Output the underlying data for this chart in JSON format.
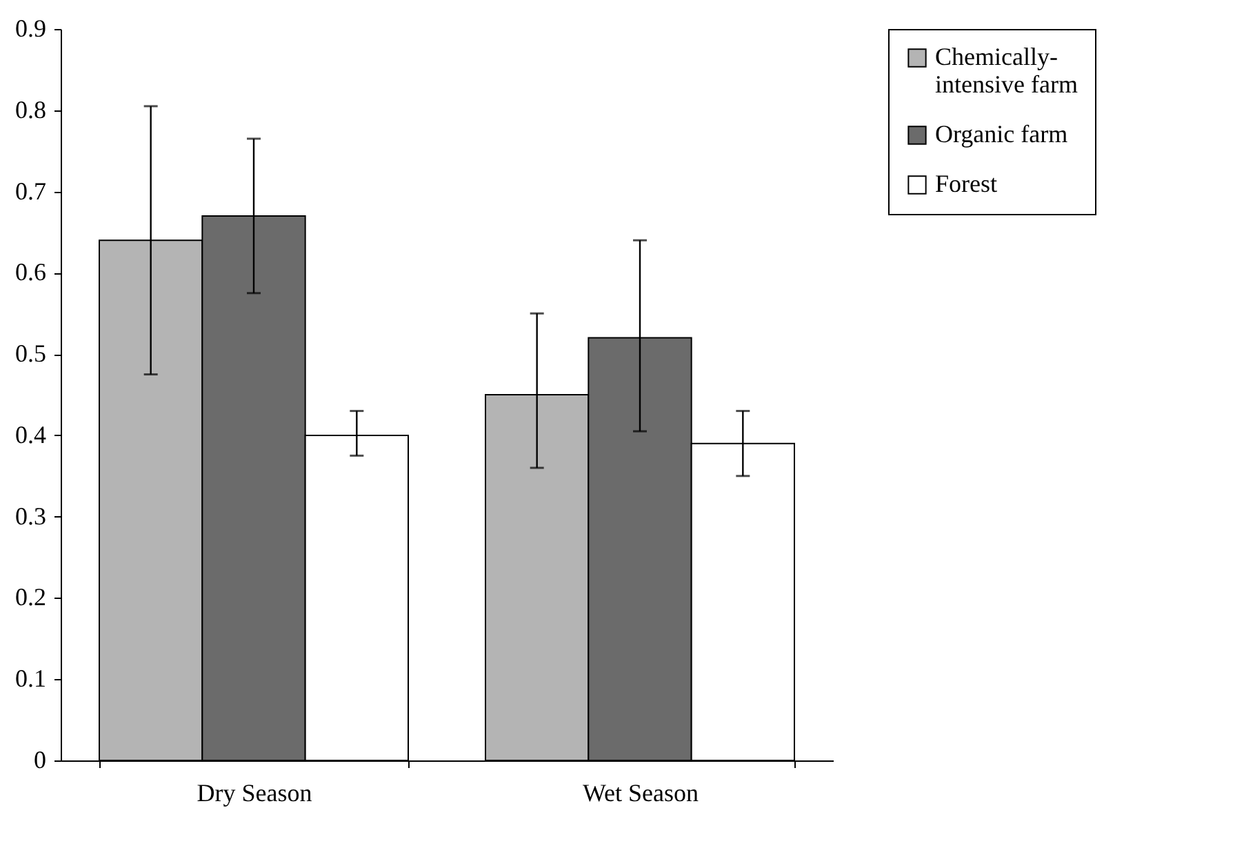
{
  "chart_data": {
    "type": "bar",
    "categories": [
      "Dry Season",
      "Wet Season"
    ],
    "series": [
      {
        "name": "Chemically-intensive farm",
        "color": "#b4b4b4",
        "values": [
          0.64,
          0.45
        ],
        "errors": [
          [
            0.475,
            0.805
          ],
          [
            0.36,
            0.55
          ]
        ]
      },
      {
        "name": "Organic farm",
        "color": "#6b6b6b",
        "values": [
          0.67,
          0.52
        ],
        "errors": [
          [
            0.575,
            0.765
          ],
          [
            0.405,
            0.64
          ]
        ]
      },
      {
        "name": "Forest",
        "color": "#ffffff",
        "values": [
          0.4,
          0.39
        ],
        "errors": [
          [
            0.375,
            0.43
          ],
          [
            0.35,
            0.43
          ]
        ]
      }
    ],
    "ylim": [
      0,
      0.9
    ],
    "yticks": [
      0,
      0.1,
      0.2,
      0.3,
      0.4,
      0.5,
      0.6,
      0.7,
      0.8,
      0.9
    ],
    "grid": false,
    "legend": "right"
  }
}
